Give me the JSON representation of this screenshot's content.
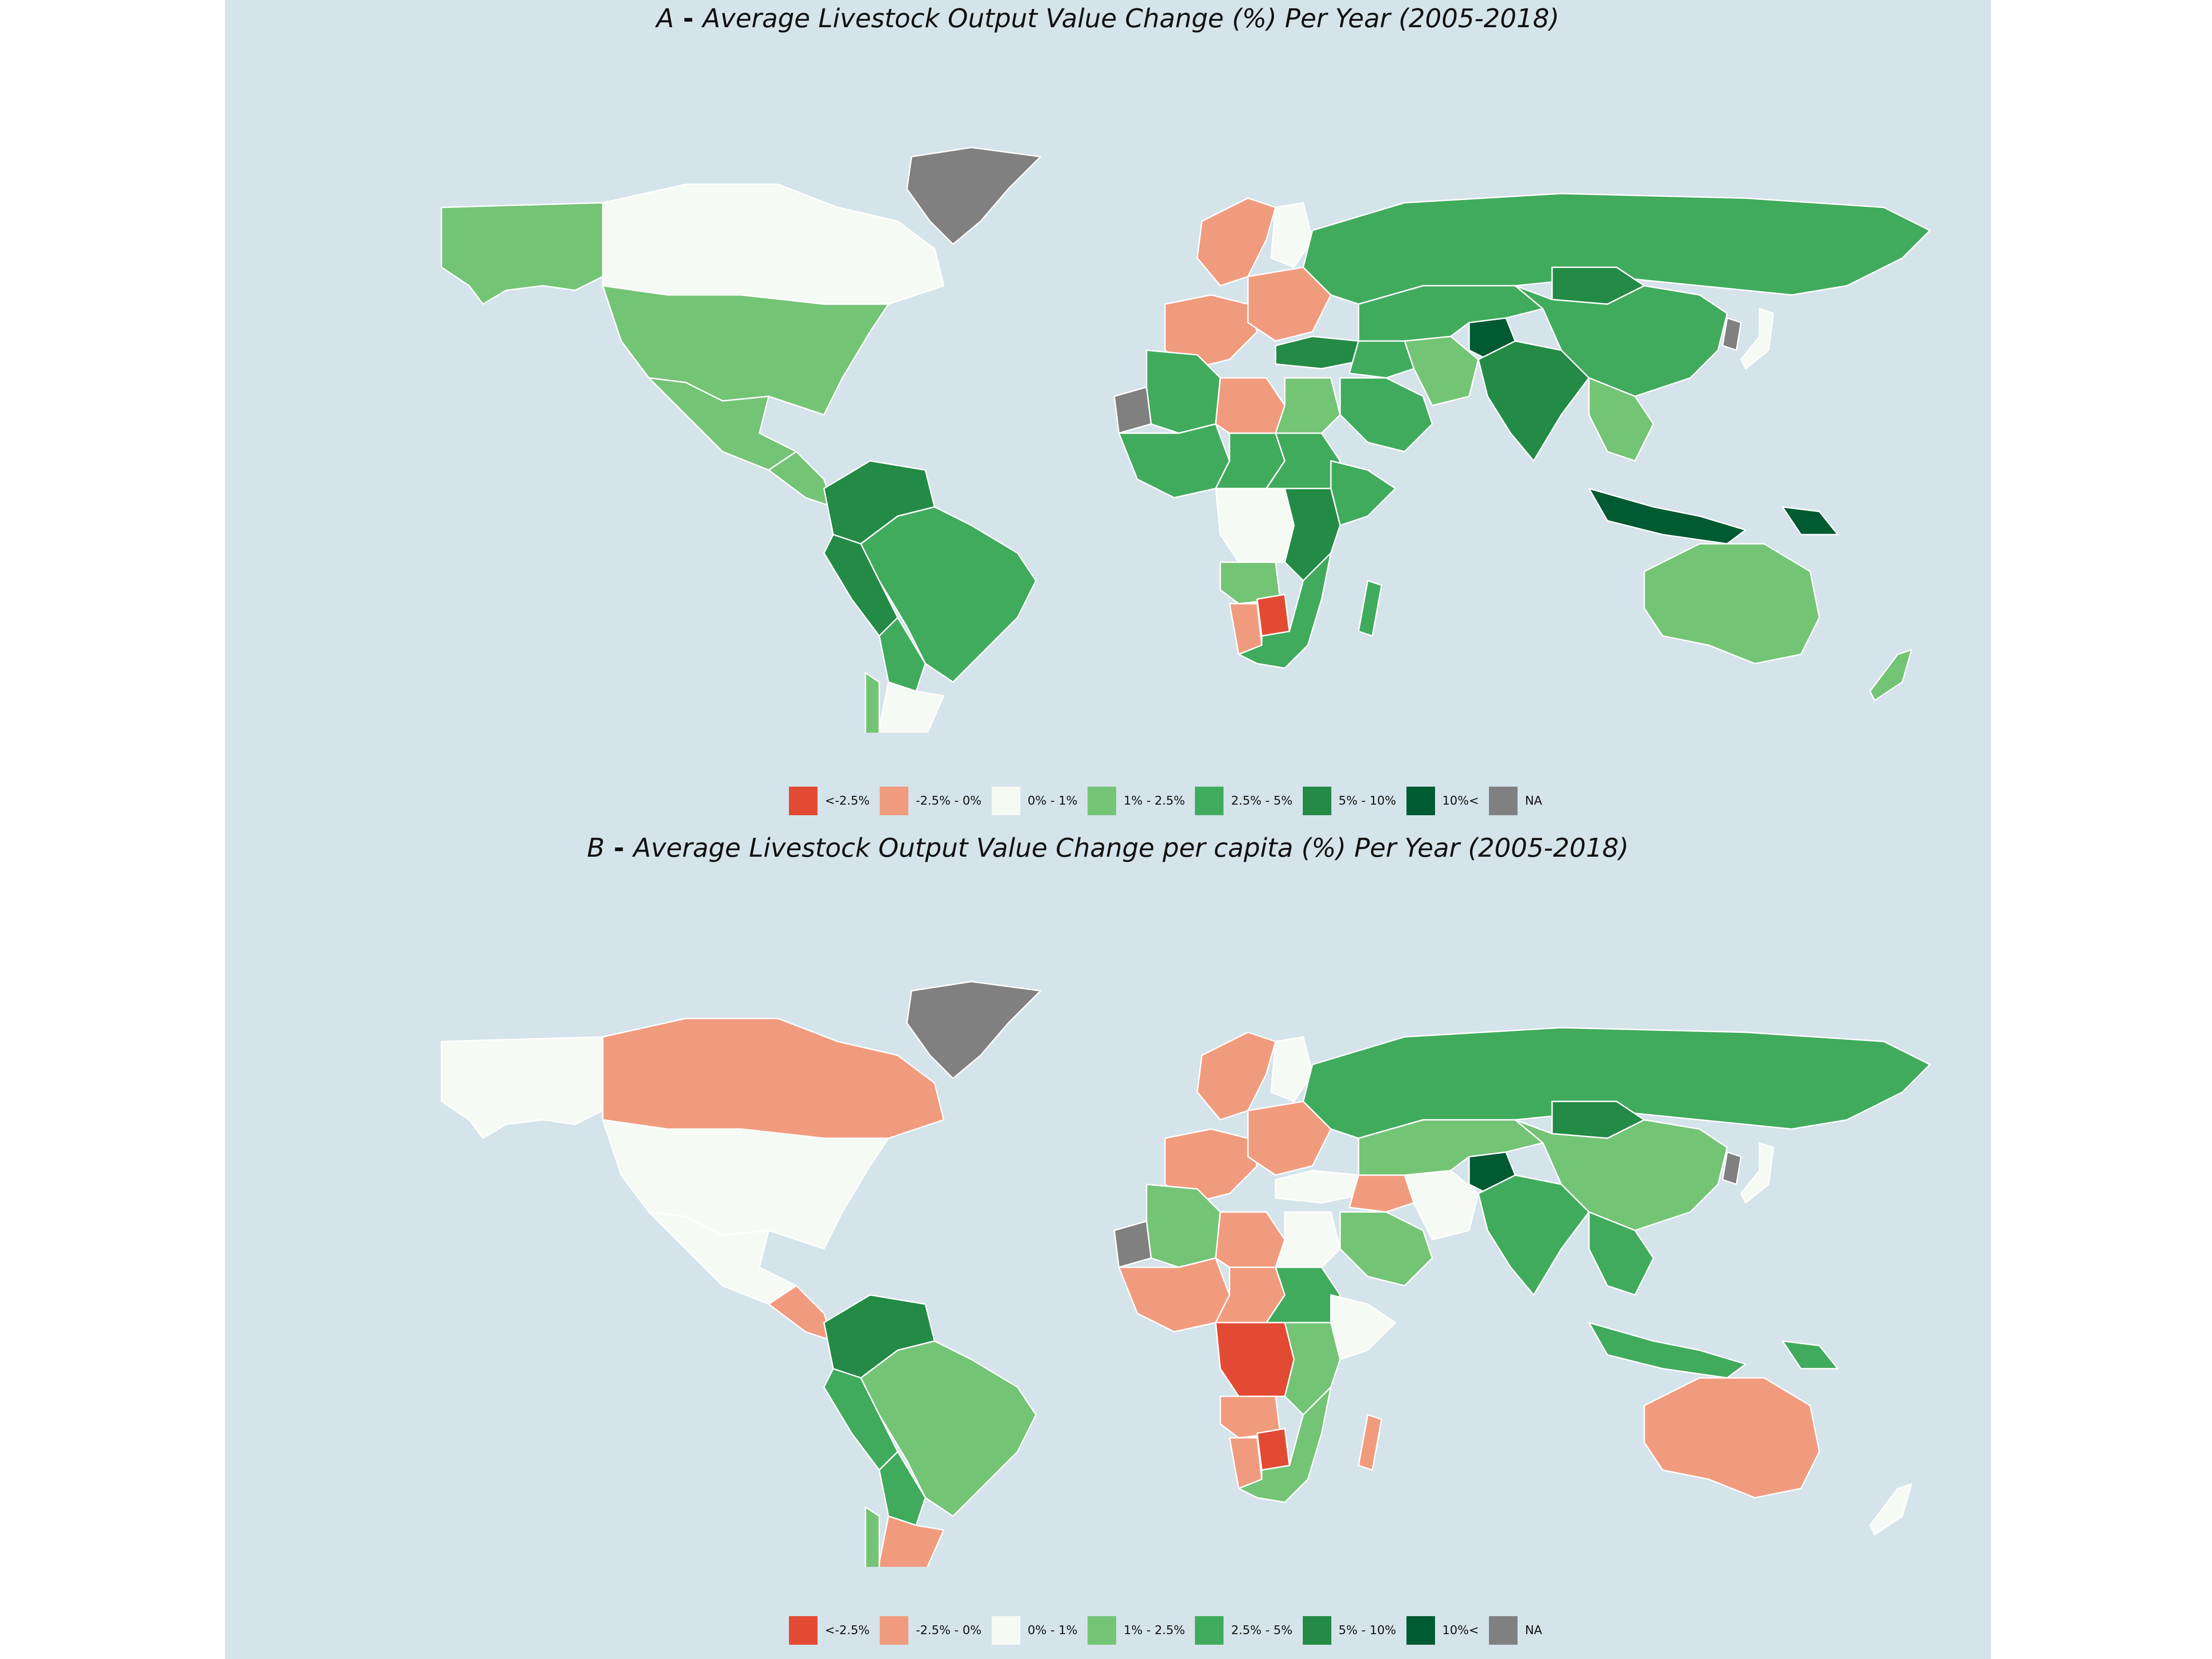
{
  "colors": {
    "ocean": "#d5e3ea",
    "border": "#ffffff",
    "lt_neg_2_5": "#e34a33",
    "neg_2_5_0": "#f19b7e",
    "z0_1": "#f6faf4",
    "p1_2_5": "#74c476",
    "p2_5_5": "#41ab5d",
    "p5_10": "#238b45",
    "p10_plus": "#005a32",
    "na": "#808080"
  },
  "legend": [
    {
      "label": "<-2.5%",
      "color": "#e34a33"
    },
    {
      "label": "-2.5% -  0%",
      "color": "#f19b7e"
    },
    {
      "label": "0% -  1%",
      "color": "#f6faf4"
    },
    {
      "label": "1% -  2.5%",
      "color": "#74c476"
    },
    {
      "label": "2.5% -  5%",
      "color": "#41ab5d"
    },
    {
      "label": "5% -  10%",
      "color": "#238b45"
    },
    {
      "label": "10%<",
      "color": "#005a32"
    },
    {
      "label": "NA",
      "color": "#808080"
    }
  ],
  "panels": [
    {
      "letter": "A",
      "dash": " - ",
      "title": "Average Livestock Output Value Change (%) Per Year (2005-2018)",
      "regions": {
        "alaska": "#74c476",
        "canada": "#f6faf4",
        "greenland": "#808080",
        "usa": "#74c476",
        "mexico": "#74c476",
        "central_america": "#74c476",
        "colombia_venezuela": "#238b45",
        "peru_ecuador": "#238b45",
        "brazil": "#41ab5d",
        "bolivia_paraguay": "#41ab5d",
        "argentina": "#f6faf4",
        "chile": "#74c476",
        "scandinavia": "#f19b7e",
        "finland": "#f6faf4",
        "western_europe": "#f19b7e",
        "eastern_europe": "#f19b7e",
        "russia": "#41ab5d",
        "turkey": "#238b45",
        "north_africa_west": "#41ab5d",
        "libya": "#f19b7e",
        "egypt": "#74c476",
        "west_africa": "#41ab5d",
        "sahel": "#41ab5d",
        "sudan": "#41ab5d",
        "horn_africa": "#41ab5d",
        "congo": "#f6faf4",
        "east_africa": "#238b45",
        "angola": "#74c476",
        "namibia": "#f19b7e",
        "botswana": "#e34a33",
        "southern_africa": "#41ab5d",
        "madagascar": "#41ab5d",
        "western_sahara": "#808080",
        "middle_east": "#41ab5d",
        "arabia": "#41ab5d",
        "iran": "#74c476",
        "afghanistan": "#005a32",
        "central_asia": "#41ab5d",
        "india": "#238b45",
        "china": "#41ab5d",
        "mongolia": "#238b45",
        "se_asia": "#74c476",
        "indonesia": "#005a32",
        "png": "#005a32",
        "australia": "#74c476",
        "nz": "#74c476",
        "japan": "#f6faf4",
        "korea": "#808080"
      }
    },
    {
      "letter": "B",
      "dash": " - ",
      "title": "Average Livestock Output Value Change per capita (%) Per Year (2005-2018)",
      "regions": {
        "alaska": "#f6faf4",
        "canada": "#f19b7e",
        "greenland": "#808080",
        "usa": "#f6faf4",
        "mexico": "#f6faf4",
        "central_america": "#f19b7e",
        "colombia_venezuela": "#238b45",
        "peru_ecuador": "#41ab5d",
        "brazil": "#74c476",
        "bolivia_paraguay": "#41ab5d",
        "argentina": "#f19b7e",
        "chile": "#74c476",
        "scandinavia": "#f19b7e",
        "finland": "#f6faf4",
        "western_europe": "#f19b7e",
        "eastern_europe": "#f19b7e",
        "russia": "#41ab5d",
        "turkey": "#f6faf4",
        "north_africa_west": "#74c476",
        "libya": "#f19b7e",
        "egypt": "#f6faf4",
        "west_africa": "#f19b7e",
        "sahel": "#f19b7e",
        "sudan": "#41ab5d",
        "horn_africa": "#f6faf4",
        "congo": "#e34a33",
        "east_africa": "#74c476",
        "angola": "#f19b7e",
        "namibia": "#f19b7e",
        "botswana": "#e34a33",
        "southern_africa": "#74c476",
        "madagascar": "#f19b7e",
        "western_sahara": "#808080",
        "middle_east": "#f19b7e",
        "arabia": "#74c476",
        "iran": "#f6faf4",
        "afghanistan": "#005a32",
        "central_asia": "#74c476",
        "india": "#41ab5d",
        "china": "#74c476",
        "mongolia": "#238b45",
        "se_asia": "#41ab5d",
        "indonesia": "#41ab5d",
        "png": "#41ab5d",
        "australia": "#f19b7e",
        "nz": "#f6faf4",
        "japan": "#f6faf4",
        "korea": "#808080"
      }
    }
  ]
}
